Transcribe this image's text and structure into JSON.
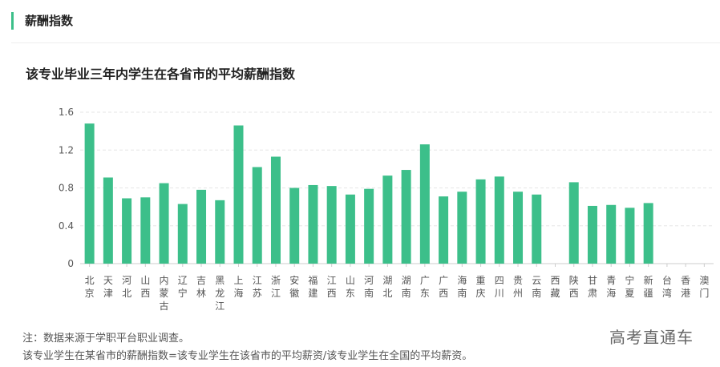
{
  "section_title": "薪酬指数",
  "chart_data": {
    "type": "bar",
    "title": "该专业毕业三年内学生在各省市的平均薪酬指数",
    "categories": [
      "北京",
      "天津",
      "河北",
      "山西",
      "内蒙古",
      "辽宁",
      "吉林",
      "黑龙江",
      "上海",
      "江苏",
      "浙江",
      "安徽",
      "福建",
      "江西",
      "山东",
      "河南",
      "湖北",
      "湖南",
      "广东",
      "广西",
      "海南",
      "重庆",
      "四川",
      "贵州",
      "云南",
      "西藏",
      "陕西",
      "甘肃",
      "青海",
      "宁夏",
      "新疆",
      "台湾",
      "香港",
      "澳门"
    ],
    "values": [
      1.48,
      0.91,
      0.69,
      0.7,
      0.85,
      0.63,
      0.78,
      0.67,
      1.46,
      1.02,
      1.13,
      0.8,
      0.83,
      0.82,
      0.73,
      0.79,
      0.93,
      0.99,
      1.26,
      0.71,
      0.76,
      0.89,
      0.92,
      0.76,
      0.73,
      null,
      0.86,
      0.61,
      0.62,
      0.59,
      0.64,
      null,
      null,
      null
    ],
    "ylim": [
      0,
      1.6
    ],
    "yticks": [
      "0",
      "0.4",
      "0.8",
      "1.2",
      "1.6"
    ],
    "grid": true,
    "bar_color": "#3cbf8a"
  },
  "notes": [
    "注：数据来源于学职平台职业调查。",
    "该专业学生在某省市的薪酬指数=该专业学生在该省市的平均薪资/该专业学生在全国的平均薪资。"
  ],
  "brand": "高考直通车"
}
